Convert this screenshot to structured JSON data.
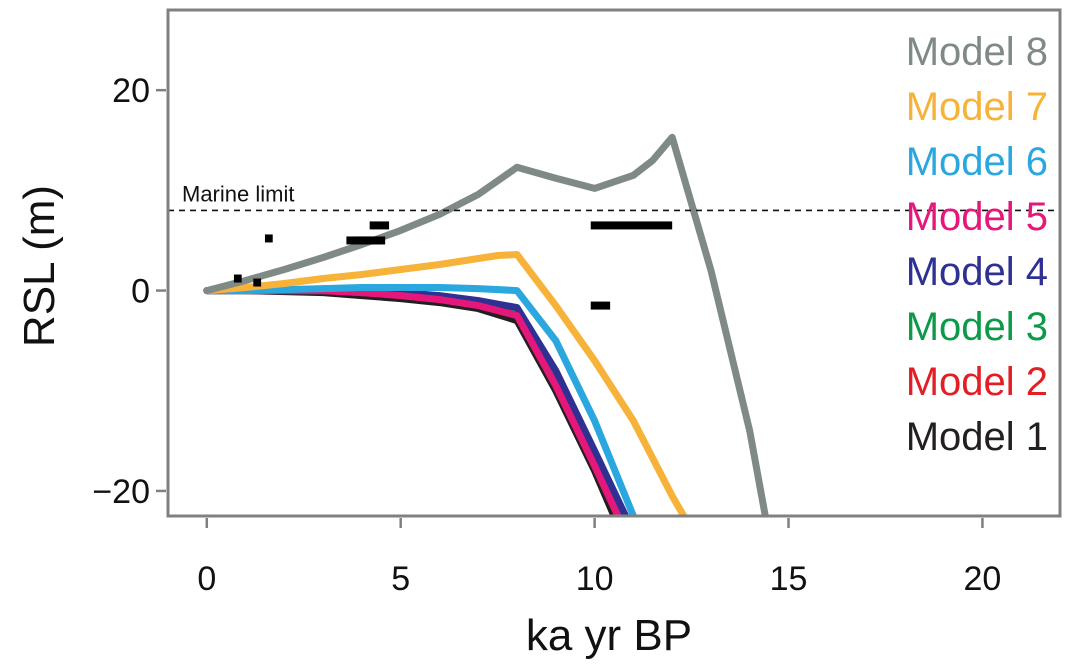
{
  "chart_data": {
    "type": "line",
    "title": "",
    "xlabel": "ka yr BP",
    "ylabel": "RSL (m)",
    "xlim": [
      -1,
      22
    ],
    "ylim": [
      -22.5,
      28
    ],
    "xticks": [
      0,
      5,
      10,
      15,
      20
    ],
    "yticks": [
      -20,
      0,
      20
    ],
    "xtick_labels": [
      "0",
      "5",
      "10",
      "15",
      "20"
    ],
    "ytick_labels": [
      "−20",
      "0",
      "20"
    ],
    "grid": false,
    "legend_placement": "right",
    "annotation": {
      "text": "Marine limit",
      "y": 8
    },
    "series": [
      {
        "name": "Model 1",
        "color": "#231f20",
        "x": [
          0,
          1,
          2,
          3,
          4,
          5,
          6,
          7,
          8,
          9,
          10,
          10.5
        ],
        "y": [
          0,
          0,
          -0.1,
          -0.2,
          -0.5,
          -0.8,
          -1.2,
          -1.8,
          -3,
          -10,
          -18,
          -22.5
        ]
      },
      {
        "name": "Model 2",
        "color": "#e31e24",
        "x": [
          0,
          1,
          2,
          3,
          4,
          5,
          6,
          7,
          8,
          9,
          10,
          10.6
        ],
        "y": [
          0,
          0,
          0,
          0,
          -0.2,
          -0.4,
          -0.8,
          -1.3,
          -2.2,
          -9,
          -17,
          -22.5
        ]
      },
      {
        "name": "Model 3",
        "color": "#0d9a48",
        "x": [
          0,
          1,
          2,
          3,
          4,
          5,
          6,
          7,
          8,
          9,
          10,
          10.7
        ],
        "y": [
          0,
          0,
          0,
          0,
          -0.1,
          -0.3,
          -0.6,
          -1.1,
          -2,
          -8.5,
          -16.5,
          -22.5
        ]
      },
      {
        "name": "Model 4",
        "color": "#2e3192",
        "x": [
          0,
          1,
          2,
          3,
          4,
          5,
          6,
          7,
          8,
          9,
          10,
          10.8
        ],
        "y": [
          0,
          0,
          0,
          0,
          0,
          -0.2,
          -0.5,
          -1,
          -1.7,
          -8,
          -16,
          -22.5
        ]
      },
      {
        "name": "Model 5",
        "color": "#e5177a",
        "x": [
          0,
          1,
          2,
          3,
          4,
          5,
          6,
          7,
          8,
          9,
          10,
          10.6
        ],
        "y": [
          0,
          0,
          0,
          0,
          -0.2,
          -0.5,
          -0.9,
          -1.5,
          -2.5,
          -9.5,
          -17.5,
          -22.5
        ]
      },
      {
        "name": "Model 6",
        "color": "#2aa7df",
        "x": [
          0,
          1,
          2,
          3,
          4,
          5,
          6,
          7,
          8,
          9,
          10,
          11
        ],
        "y": [
          0,
          0,
          0.1,
          0.2,
          0.3,
          0.3,
          0.3,
          0.2,
          0,
          -5,
          -13,
          -22.5
        ]
      },
      {
        "name": "Model 7",
        "color": "#f7b239",
        "x": [
          0,
          1,
          2,
          3,
          4,
          5,
          6,
          7,
          7.5,
          8,
          9,
          10,
          11,
          12,
          12.3
        ],
        "y": [
          0,
          0.3,
          0.7,
          1.2,
          1.6,
          2.1,
          2.6,
          3.2,
          3.5,
          3.6,
          -1.5,
          -7,
          -13,
          -20.5,
          -22.5
        ]
      },
      {
        "name": "Model 8",
        "color": "#7f8a86",
        "x": [
          0,
          1,
          2,
          3,
          4,
          5,
          6,
          7,
          8,
          9,
          10,
          11,
          11.5,
          12,
          13,
          14,
          14.4
        ],
        "y": [
          0,
          1,
          2.1,
          3.3,
          4.6,
          6,
          7.6,
          9.6,
          12.3,
          11.2,
          10.2,
          11.5,
          13,
          15.3,
          2,
          -14,
          -22.5
        ]
      }
    ],
    "observations": [
      {
        "x": [
          0.7,
          0.9
        ],
        "y": 1.2
      },
      {
        "x": [
          1.2,
          1.4
        ],
        "y": 0.8
      },
      {
        "x": [
          1.5,
          1.7
        ],
        "y": 5.2
      },
      {
        "x": [
          3.6,
          4.5
        ],
        "y": 5
      },
      {
        "x": [
          3.9,
          4.6
        ],
        "y": 5
      },
      {
        "x": [
          4.2,
          4.7
        ],
        "y": 6.5
      },
      {
        "x": [
          9.9,
          12
        ],
        "y": 6.5
      },
      {
        "x": [
          9.9,
          10.4
        ],
        "y": -1.5
      }
    ]
  }
}
